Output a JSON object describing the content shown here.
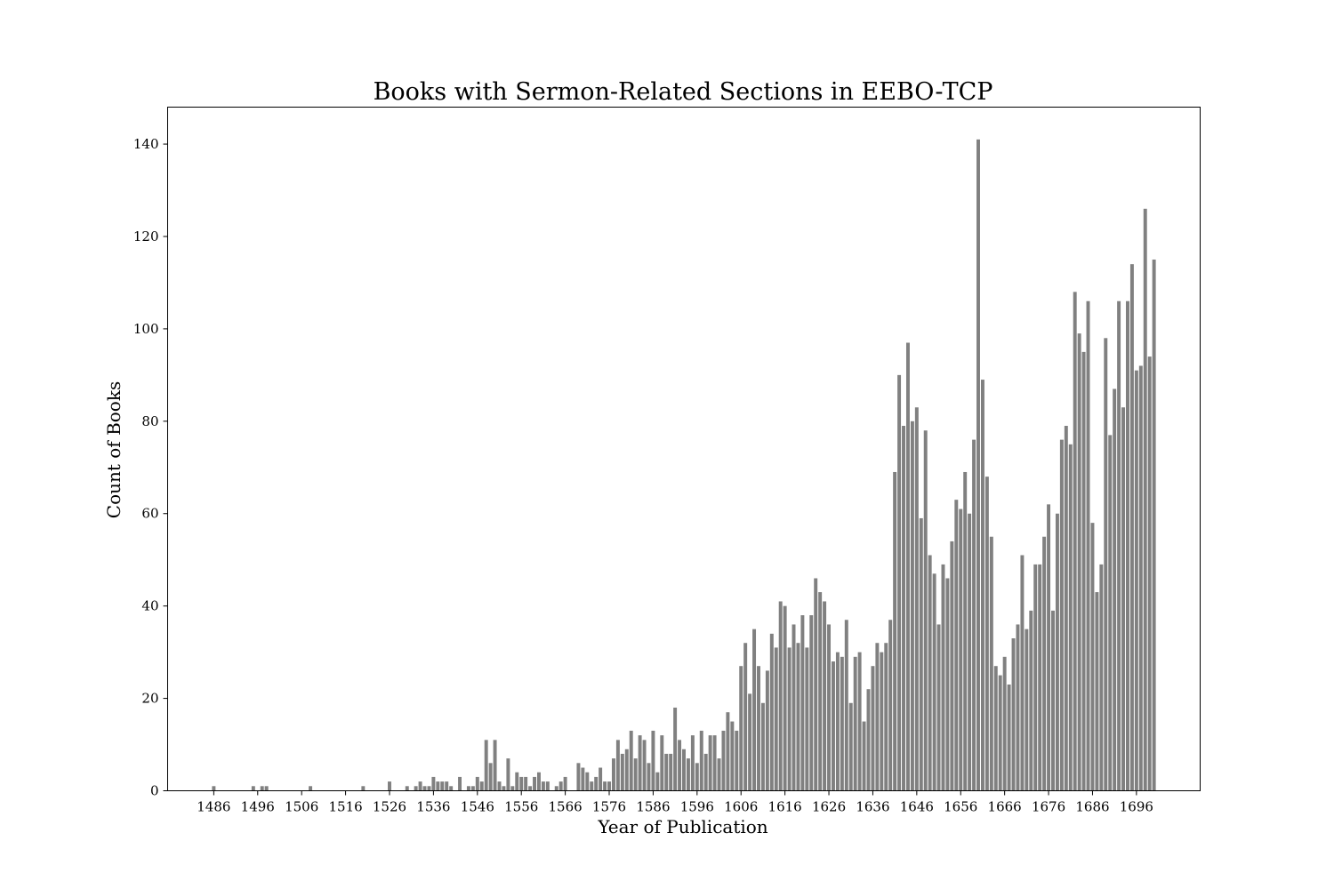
{
  "chart_data": {
    "type": "bar",
    "title": "Books with Sermon-Related Sections in EEBO-TCP",
    "xlabel": "Year of Publication",
    "ylabel": "Count of Books",
    "xticks": [
      1486,
      1496,
      1506,
      1516,
      1526,
      1536,
      1546,
      1556,
      1566,
      1576,
      1586,
      1596,
      1606,
      1616,
      1626,
      1636,
      1646,
      1656,
      1666,
      1676,
      1686,
      1696
    ],
    "yticks": [
      0,
      20,
      40,
      60,
      80,
      100,
      120,
      140
    ],
    "xlim": [
      1475.5,
      1710.5
    ],
    "ylim": [
      0,
      148
    ],
    "grid": false,
    "bar_color": "#808080",
    "x": [
      1486,
      1495,
      1497,
      1498,
      1508,
      1520,
      1526,
      1530,
      1532,
      1533,
      1534,
      1535,
      1536,
      1537,
      1538,
      1539,
      1540,
      1542,
      1544,
      1545,
      1546,
      1547,
      1548,
      1549,
      1550,
      1551,
      1552,
      1553,
      1554,
      1555,
      1556,
      1557,
      1558,
      1559,
      1560,
      1561,
      1562,
      1564,
      1565,
      1566,
      1569,
      1570,
      1571,
      1572,
      1573,
      1574,
      1575,
      1576,
      1577,
      1578,
      1579,
      1580,
      1581,
      1582,
      1583,
      1584,
      1585,
      1586,
      1587,
      1588,
      1589,
      1590,
      1591,
      1592,
      1593,
      1594,
      1595,
      1596,
      1597,
      1598,
      1599,
      1600,
      1601,
      1602,
      1603,
      1604,
      1605,
      1606,
      1607,
      1608,
      1609,
      1610,
      1611,
      1612,
      1613,
      1614,
      1615,
      1616,
      1617,
      1618,
      1619,
      1620,
      1621,
      1622,
      1623,
      1624,
      1625,
      1626,
      1627,
      1628,
      1629,
      1630,
      1631,
      1632,
      1633,
      1634,
      1635,
      1636,
      1637,
      1638,
      1639,
      1640,
      1641,
      1642,
      1643,
      1644,
      1645,
      1646,
      1647,
      1648,
      1649,
      1650,
      1651,
      1652,
      1653,
      1654,
      1655,
      1656,
      1657,
      1658,
      1659,
      1660,
      1661,
      1662,
      1663,
      1664,
      1665,
      1666,
      1667,
      1668,
      1669,
      1670,
      1671,
      1672,
      1673,
      1674,
      1675,
      1676,
      1677,
      1678,
      1679,
      1680,
      1681,
      1682,
      1683,
      1684,
      1685,
      1686,
      1687,
      1688,
      1689,
      1690,
      1691,
      1692,
      1693,
      1694,
      1695,
      1696,
      1697,
      1698,
      1699,
      1700
    ],
    "values": [
      1,
      1,
      1,
      1,
      1,
      1,
      2,
      1,
      1,
      2,
      1,
      1,
      3,
      2,
      2,
      2,
      1,
      3,
      1,
      1,
      3,
      2,
      11,
      6,
      11,
      2,
      1,
      7,
      1,
      4,
      3,
      3,
      1,
      3,
      4,
      2,
      2,
      1,
      2,
      3,
      6,
      5,
      4,
      2,
      3,
      5,
      2,
      2,
      7,
      11,
      8,
      9,
      13,
      7,
      12,
      11,
      6,
      13,
      4,
      12,
      8,
      8,
      18,
      11,
      9,
      7,
      12,
      6,
      13,
      8,
      12,
      12,
      7,
      13,
      17,
      15,
      13,
      27,
      32,
      21,
      35,
      27,
      19,
      26,
      34,
      31,
      41,
      40,
      31,
      36,
      32,
      38,
      31,
      38,
      46,
      43,
      41,
      36,
      28,
      30,
      29,
      37,
      19,
      29,
      30,
      15,
      22,
      27,
      32,
      30,
      32,
      37,
      69,
      90,
      79,
      97,
      80,
      83,
      59,
      78,
      51,
      47,
      36,
      49,
      46,
      54,
      63,
      61,
      69,
      60,
      76,
      141,
      89,
      68,
      55,
      27,
      25,
      29,
      23,
      33,
      36,
      51,
      35,
      39,
      49,
      49,
      55,
      62,
      39,
      60,
      76,
      79,
      75,
      108,
      99,
      95,
      106,
      58,
      43,
      49,
      98,
      77,
      87,
      106,
      83,
      106,
      114,
      91,
      92,
      126,
      94,
      115
    ]
  }
}
